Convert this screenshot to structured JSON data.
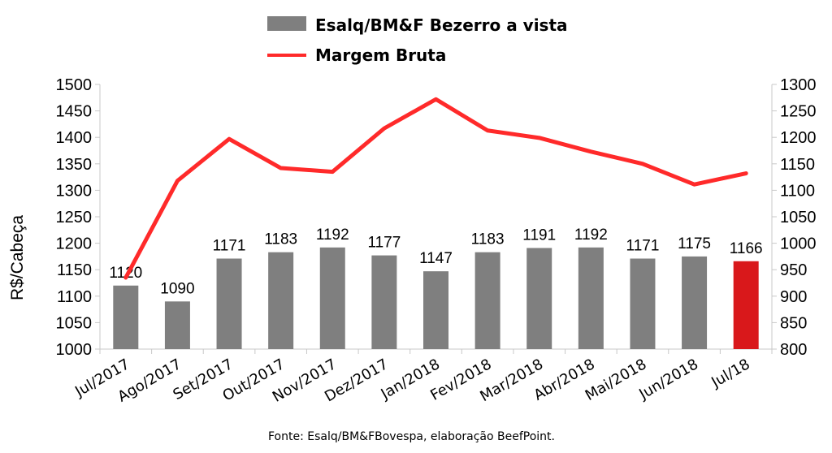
{
  "chart_data": {
    "type": "bar",
    "categories": [
      "Jul/2017",
      "Ago/2017",
      "Set/2017",
      "Out/2017",
      "Nov/2017",
      "Dez/2017",
      "Jan/2018",
      "Fev/2018",
      "Mar/2018",
      "Abr/2018",
      "Mai/2018",
      "Jun/2018",
      "Jul/18"
    ],
    "series": [
      {
        "name": "Esalq/BM&F Bezerro a vista",
        "type": "bar",
        "axis": "left",
        "values": [
          1120,
          1090,
          1171,
          1183,
          1192,
          1177,
          1147,
          1183,
          1191,
          1192,
          1171,
          1175,
          1166
        ],
        "data_labels": [
          "1120",
          "1090",
          "1171",
          "1183",
          "1192",
          "1177",
          "1147",
          "1183",
          "1191",
          "1192",
          "1171",
          "1175",
          "1166"
        ],
        "color": "#7f7f7f",
        "highlight_last_color": "#d9181b"
      },
      {
        "name": "Margem Bruta",
        "type": "line",
        "axis": "right",
        "values": [
          935,
          1118,
          1197,
          1142,
          1135,
          1217,
          1272,
          1213,
          1199,
          1173,
          1150,
          1111,
          1132
        ],
        "color": "#ff2a2a"
      }
    ],
    "ylabel": "R$/Cabeça",
    "ylim": [
      1000,
      1500
    ],
    "y_ticks": [
      "1000",
      "1050",
      "1100",
      "1150",
      "1200",
      "1250",
      "1300",
      "1350",
      "1400",
      "1450",
      "1500"
    ],
    "y2lim": [
      800,
      1300
    ],
    "y2_ticks": [
      "800",
      "850",
      "900",
      "950",
      "1000",
      "1050",
      "1100",
      "1150",
      "1200",
      "1250",
      "1300"
    ],
    "grid": false,
    "legend_position": "top-center",
    "source": "Fonte: Esalq/BM&FBovespa, elaboração BeefPoint."
  }
}
